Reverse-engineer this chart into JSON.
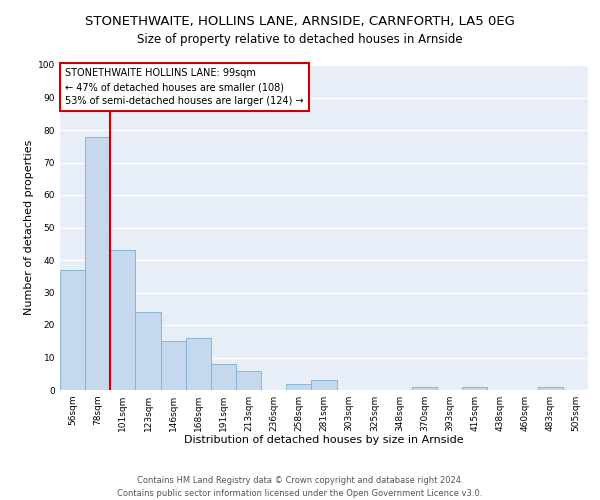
{
  "title": "STONETHWAITE, HOLLINS LANE, ARNSIDE, CARNFORTH, LA5 0EG",
  "subtitle": "Size of property relative to detached houses in Arnside",
  "xlabel": "Distribution of detached houses by size in Arnside",
  "ylabel": "Number of detached properties",
  "bar_labels": [
    "56sqm",
    "78sqm",
    "101sqm",
    "123sqm",
    "146sqm",
    "168sqm",
    "191sqm",
    "213sqm",
    "236sqm",
    "258sqm",
    "281sqm",
    "303sqm",
    "325sqm",
    "348sqm",
    "370sqm",
    "393sqm",
    "415sqm",
    "438sqm",
    "460sqm",
    "483sqm",
    "505sqm"
  ],
  "bar_values": [
    37,
    78,
    43,
    24,
    15,
    16,
    8,
    6,
    0,
    2,
    3,
    0,
    0,
    0,
    1,
    0,
    1,
    0,
    0,
    1,
    0
  ],
  "bar_color": "#c5d8ed",
  "bar_edgecolor": "#7bafd4",
  "bar_width": 1.0,
  "ylim": [
    0,
    100
  ],
  "yticks": [
    0,
    10,
    20,
    30,
    40,
    50,
    60,
    70,
    80,
    90,
    100
  ],
  "vline_color": "#cc0000",
  "annotation_title": "STONETHWAITE HOLLINS LANE: 99sqm",
  "annotation_line1": "← 47% of detached houses are smaller (108)",
  "annotation_line2": "53% of semi-detached houses are larger (124) →",
  "annotation_box_color": "#ffffff",
  "annotation_box_edgecolor": "#cc0000",
  "footer_line1": "Contains HM Land Registry data © Crown copyright and database right 2024.",
  "footer_line2": "Contains public sector information licensed under the Open Government Licence v3.0.",
  "background_color": "#ffffff",
  "plot_bg_color": "#e8eef7",
  "grid_color": "#ffffff",
  "title_fontsize": 9.5,
  "subtitle_fontsize": 8.5,
  "axis_label_fontsize": 8,
  "tick_fontsize": 6.5,
  "annotation_fontsize": 7,
  "footer_fontsize": 6
}
